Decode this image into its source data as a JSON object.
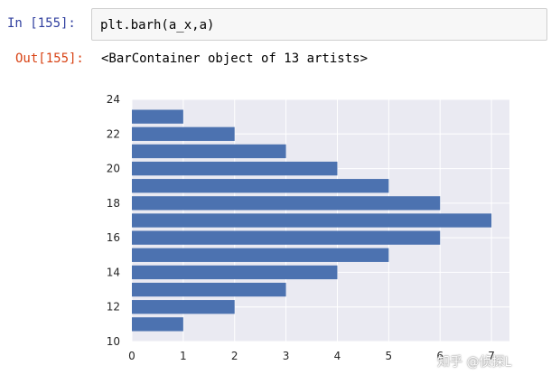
{
  "input": {
    "prompt": "In  [155]:",
    "code": "plt.barh(a_x,a)"
  },
  "output": {
    "prompt": "Out[155]:",
    "text": "<BarContainer object of 13 artists>"
  },
  "chart_data": {
    "type": "bar",
    "orientation": "horizontal",
    "categories": [
      11,
      12,
      13,
      14,
      15,
      16,
      17,
      18,
      19,
      20,
      21,
      22,
      23
    ],
    "values": [
      1,
      2,
      3,
      4,
      5,
      6,
      7,
      6,
      5,
      4,
      3,
      2,
      1
    ],
    "xlim": [
      0,
      7.35
    ],
    "ylim": [
      10,
      24
    ],
    "xticks": [
      "0",
      "1",
      "2",
      "3",
      "4",
      "5",
      "6",
      "7"
    ],
    "yticks": [
      "10",
      "12",
      "14",
      "16",
      "18",
      "20",
      "22",
      "24"
    ],
    "grid": true,
    "colors": {
      "bar": "#4c72b0",
      "background": "#eaeaf2",
      "grid": "#ffffff"
    }
  },
  "watermark": "知乎 @侦探L"
}
